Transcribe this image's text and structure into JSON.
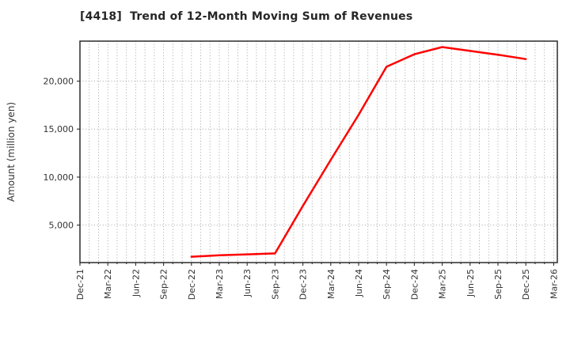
{
  "title": "[4418]  Trend of 12-Month Moving Sum of Revenues",
  "chart_data": {
    "type": "line",
    "title": "[4418]  Trend of 12-Month Moving Sum of Revenues",
    "xlabel": "",
    "ylabel": "Amount (million yen)",
    "categories": [
      "Dec-21",
      "Mar-22",
      "Jun-22",
      "Sep-22",
      "Dec-22",
      "Mar-23",
      "Jun-23",
      "Sep-23",
      "Dec-23",
      "Mar-24",
      "Jun-24",
      "Sep-24",
      "Dec-24",
      "Mar-25",
      "Jun-25",
      "Sep-25",
      "Dec-25",
      "Mar-26"
    ],
    "series": [
      {
        "name": "12-Month Moving Sum of Revenues",
        "color": "#ff0000",
        "values": [
          null,
          null,
          null,
          null,
          1700,
          1850,
          1950,
          2050,
          7000,
          11800,
          16500,
          21500,
          22800,
          23550,
          23150,
          22750,
          22300,
          null
        ]
      }
    ],
    "ytick_values": [
      5000,
      10000,
      15000,
      20000
    ],
    "ytick_labels": [
      "5,000",
      "10,000",
      "15,000",
      "20,000"
    ],
    "ylim": [
      1090,
      24170
    ],
    "months_per_category": 3,
    "grid": "dotted",
    "legend": "none"
  },
  "colors": {
    "line": "#ff0000",
    "grid": "#9a9a9a",
    "axis_border": "#2b2b2b",
    "tick_text": "#333333",
    "title_text": "#262626",
    "background": "#ffffff"
  }
}
